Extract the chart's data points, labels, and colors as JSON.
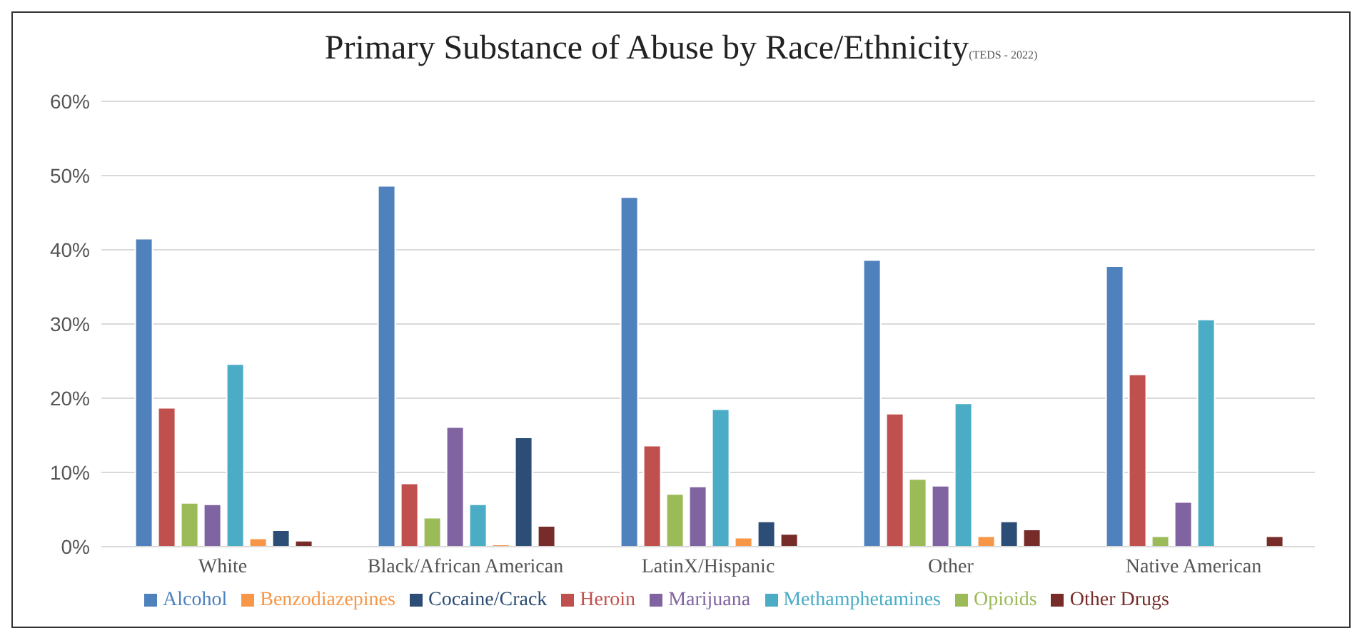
{
  "chart_data": {
    "type": "bar",
    "title": "Primary Substance of Abuse by Race/Ethnicity",
    "subtitle": "(TEDS - 2022)",
    "categories": [
      "White",
      "Black/African American",
      "LatinX/Hispanic",
      "Other",
      "Native American"
    ],
    "series": [
      {
        "name": "Alcohol",
        "color": "#4f81bd",
        "values": [
          41.5,
          48.6,
          47.1,
          38.6,
          37.8
        ]
      },
      {
        "name": "Heroin",
        "color": "#c0504d",
        "values": [
          18.7,
          8.5,
          13.6,
          17.9,
          23.2
        ]
      },
      {
        "name": "Opioids",
        "color": "#9bbb59",
        "values": [
          5.9,
          3.9,
          7.1,
          9.1,
          1.4
        ]
      },
      {
        "name": "Marijuana",
        "color": "#8064a2",
        "values": [
          5.7,
          16.1,
          8.1,
          8.2,
          6.0
        ]
      },
      {
        "name": "Methamphetamines",
        "color": "#4bacc6",
        "values": [
          24.6,
          5.7,
          18.5,
          19.3,
          30.6
        ]
      },
      {
        "name": "Benzodiazepines",
        "color": "#f79646",
        "values": [
          1.1,
          0.3,
          1.2,
          1.4,
          0
        ]
      },
      {
        "name": "Cocaine/Crack",
        "color": "#2c4d75",
        "values": [
          2.2,
          14.7,
          3.4,
          3.4,
          0
        ]
      },
      {
        "name": "Other Drugs",
        "color": "#772c2a",
        "values": [
          0.8,
          2.8,
          1.7,
          2.3,
          1.4
        ]
      }
    ],
    "ylim": [
      0,
      60
    ],
    "yticks": [
      {
        "value": 0,
        "label": "0%"
      },
      {
        "value": 10,
        "label": "10%"
      },
      {
        "value": 20,
        "label": "20%"
      },
      {
        "value": 30,
        "label": "30%"
      },
      {
        "value": 40,
        "label": "40%"
      },
      {
        "value": 50,
        "label": "50%"
      },
      {
        "value": 60,
        "label": "60%"
      }
    ],
    "grid": "y",
    "legend": "bottom"
  }
}
